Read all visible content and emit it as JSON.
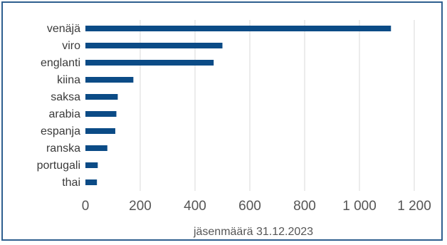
{
  "chart_data": {
    "type": "bar",
    "orientation": "horizontal",
    "categories": [
      "venäjä",
      "viro",
      "englanti",
      "kiina",
      "saksa",
      "arabia",
      "espanja",
      "ranska",
      "portugali",
      "thai"
    ],
    "values": [
      1115,
      500,
      468,
      175,
      118,
      113,
      109,
      80,
      45,
      42
    ],
    "xlabel": "jäsenmäärä 31.12.2023",
    "xlim": [
      0,
      1200
    ],
    "xticks": [
      0,
      200,
      400,
      600,
      800,
      1000,
      1200
    ],
    "xtick_labels": [
      "0",
      "200",
      "400",
      "600",
      "800",
      "1 000",
      "1 200"
    ],
    "grid": "vertical",
    "bar_color": "#0b4b86",
    "border_color": "#2f5f8f"
  }
}
